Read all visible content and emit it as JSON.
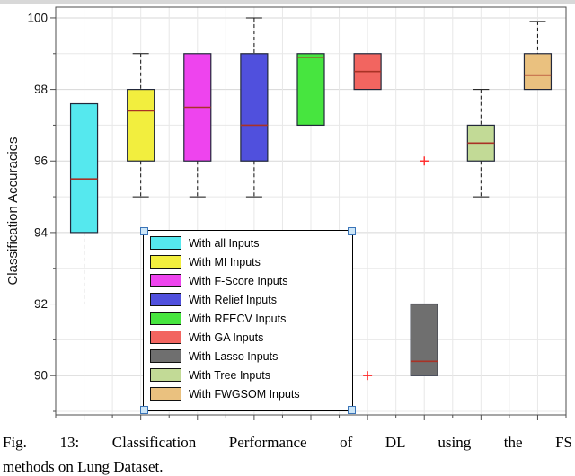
{
  "figure": {
    "caption_line1": "Fig. 13: Classification Performance of DL using the FS",
    "caption_line2": "methods on Lung Dataset."
  },
  "chart_data": {
    "type": "boxplot",
    "title": "",
    "xlabel": "",
    "ylabel": "Classification Accuracies",
    "ylim": [
      88.9,
      100.3
    ],
    "yticks": [
      90,
      92,
      94,
      96,
      98,
      100
    ],
    "grid": true,
    "legend_position": "inside-center-bottom",
    "legend_selected": true,
    "median_color": "#a93226",
    "outlier_color": "#ff2a2a",
    "outlier_marker": "+",
    "groups": [
      {
        "label": "With all Inputs",
        "color": "#55e8ee",
        "q1": 94,
        "median": 95.5,
        "q3": 97.6,
        "lo": 92,
        "hi": 97.6,
        "outliers": []
      },
      {
        "label": "With MI Inputs",
        "color": "#f2ee3e",
        "q1": 96,
        "median": 97.4,
        "q3": 98,
        "lo": 95,
        "hi": 99,
        "outliers": []
      },
      {
        "label": "With F-Score Inputs",
        "color": "#ee44ee",
        "q1": 96,
        "median": 97.5,
        "q3": 99,
        "lo": 95,
        "hi": 99,
        "outliers": []
      },
      {
        "label": "With Relief Inputs",
        "color": "#5050dd",
        "q1": 96,
        "median": 97,
        "q3": 99,
        "lo": 95,
        "hi": 100,
        "outliers": []
      },
      {
        "label": "With RFECV Inputs",
        "color": "#47e53f",
        "q1": 97,
        "median": 98.9,
        "q3": 99,
        "lo": 97,
        "hi": 99,
        "outliers": []
      },
      {
        "label": "With GA Inputs",
        "color": "#f26560",
        "q1": 98,
        "median": 98.5,
        "q3": 99,
        "lo": 98,
        "hi": 99,
        "outliers": [
          90
        ]
      },
      {
        "label": "With Lasso Inputs",
        "color": "#6f6f6f",
        "q1": 90,
        "median": 90.4,
        "q3": 92,
        "lo": 90,
        "hi": 92,
        "outliers": [
          96
        ]
      },
      {
        "label": "With Tree Inputs",
        "color": "#c2da96",
        "q1": 96,
        "median": 96.5,
        "q3": 97,
        "lo": 95,
        "hi": 98,
        "outliers": []
      },
      {
        "label": "With FWGSOM Inputs",
        "color": "#eac17f",
        "q1": 98,
        "median": 98.4,
        "q3": 99,
        "lo": 98,
        "hi": 99.9,
        "outliers": []
      }
    ]
  }
}
